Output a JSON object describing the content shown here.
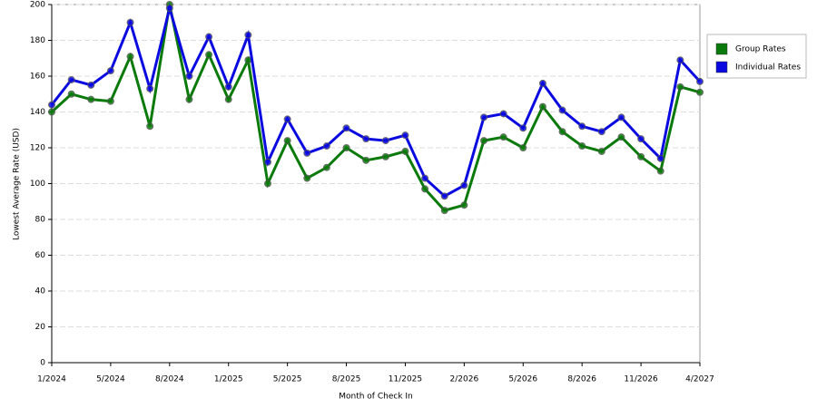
{
  "chart_data": {
    "type": "line",
    "x_label": "Month of Check In",
    "y_label": "Lowest Average Rate (USD)",
    "categories": [
      "1/2024",
      null,
      null,
      "5/2024",
      null,
      null,
      "8/2024",
      null,
      null,
      "1/2025",
      null,
      null,
      "5/2025",
      null,
      null,
      "8/2025",
      null,
      null,
      "11/2025",
      null,
      null,
      "2/2026",
      null,
      null,
      "5/2026",
      null,
      null,
      "8/2026",
      null,
      null,
      "11/2026",
      null,
      null,
      "4/2027"
    ],
    "series": [
      {
        "name": "Group Rates",
        "color": "#0a7a0a",
        "values": [
          140,
          150,
          147,
          146,
          171,
          132,
          200,
          147,
          172,
          147,
          169,
          100,
          124,
          103,
          109,
          120,
          113,
          115,
          118,
          97,
          85,
          88,
          124,
          126,
          120,
          143,
          129,
          121,
          118,
          126,
          115,
          107,
          154,
          151
        ]
      },
      {
        "name": "Individual Rates",
        "color": "#0a0ae0",
        "values": [
          144,
          158,
          155,
          163,
          190,
          153,
          198,
          160,
          182,
          154,
          183,
          112,
          136,
          117,
          121,
          131,
          125,
          124,
          127,
          103,
          93,
          99,
          137,
          139,
          131,
          156,
          141,
          132,
          129,
          137,
          125,
          114,
          169,
          157
        ]
      }
    ],
    "ylim": [
      0,
      200
    ],
    "yticks": [
      0,
      20,
      40,
      60,
      80,
      100,
      120,
      140,
      160,
      180,
      200
    ],
    "grid": true,
    "legend": "right"
  }
}
